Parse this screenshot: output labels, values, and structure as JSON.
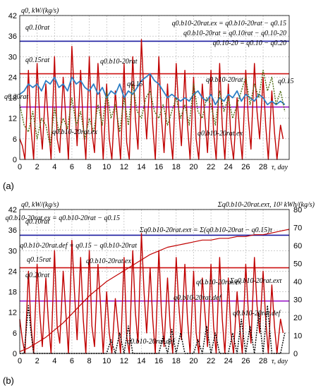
{
  "chart_data": [
    {
      "panel_label": "(a)",
      "type": "line",
      "ylabel": "q0, kW/(kg/s)",
      "xlabel": "τ, day",
      "xlim": [
        0,
        31
      ],
      "ylim": [
        0,
        42
      ],
      "x_ticks": [
        0,
        2,
        4,
        6,
        8,
        10,
        12,
        14,
        16,
        18,
        20,
        22,
        24,
        26,
        28
      ],
      "y_ticks": [
        0,
        6,
        12,
        18,
        24,
        30,
        36,
        42
      ],
      "grid": true,
      "reference_lines": [
        {
          "name": "q0.10rat",
          "value": 34.5,
          "color": "#1a1aa0"
        },
        {
          "name": "q0.15rat",
          "value": 25.0,
          "color": "#cc1111"
        },
        {
          "name": "q0.20rat",
          "value": 15.3,
          "color": "#9a1ac8"
        }
      ],
      "formulas": [
        "q0.b10-20rat.ex = q0.b10-20rat − q0.15",
        "q0.b10-20rat = q0.10rat − q0.10-20",
        "q0.10-20 = q0.10 − q0.20"
      ],
      "annotations": [
        "q0.10rat",
        "q0.15rat",
        "q0.20rat",
        "q0.b10-20rat",
        "q0.15",
        "q0.b10-20rat",
        "q0.15",
        "q0.b10-20rat.ex",
        "q0.b10-20rat.ex"
      ],
      "series": [
        {
          "name": "q0.b10-20rat.ex",
          "color": "#c00000",
          "x": [
            0,
            0.3,
            0.6,
            1.0,
            1.3,
            1.6,
            2.0,
            2.3,
            2.6,
            3.0,
            3.3,
            3.6,
            4.0,
            4.3,
            4.6,
            5.0,
            5.3,
            5.6,
            6.0,
            6.3,
            6.6,
            7.0,
            7.3,
            7.6,
            8.0,
            8.3,
            8.6,
            9.0,
            9.3,
            9.6,
            10.0,
            10.3,
            10.6,
            11.0,
            11.3,
            11.6,
            12.0,
            12.3,
            12.6,
            13.0,
            13.3,
            13.6,
            14.0,
            14.3,
            14.6,
            15.0,
            15.3,
            15.6,
            16.0,
            16.3,
            16.6,
            17.0,
            17.3,
            17.6,
            18.0,
            18.3,
            18.6,
            19.0,
            19.3,
            19.6,
            20.0,
            20.3,
            20.6,
            21.0,
            21.3,
            21.6,
            22.0,
            22.3,
            22.6,
            23.0,
            23.3,
            23.6,
            24.0,
            24.3,
            24.6,
            25.0,
            25.3,
            25.6,
            26.0,
            26.3,
            26.6,
            27.0,
            27.3,
            27.6,
            28.0,
            28.3,
            28.6,
            29.0,
            29.3,
            29.6,
            30.0,
            30.3
          ],
          "values": [
            6,
            4,
            0,
            26,
            9,
            0,
            28,
            12,
            3,
            22,
            10,
            0,
            30,
            6,
            2,
            24,
            12,
            0,
            33,
            18,
            4,
            26,
            10,
            0,
            30,
            8,
            2,
            28,
            15,
            0,
            22,
            6,
            0,
            20,
            10,
            0,
            28,
            5,
            0,
            30,
            12,
            3,
            35,
            18,
            6,
            25,
            10,
            0,
            30,
            12,
            2,
            22,
            8,
            0,
            28,
            14,
            4,
            26,
            10,
            0,
            24,
            6,
            0,
            22,
            12,
            2,
            26,
            8,
            0,
            28,
            10,
            0,
            22,
            6,
            0,
            18,
            8,
            0,
            26,
            12,
            3,
            28,
            14,
            6,
            24,
            10,
            0,
            20,
            8,
            0,
            10,
            6
          ]
        },
        {
          "name": "q0.15",
          "color": "#2e7fc6",
          "x": [
            0,
            0.5,
            1.0,
            1.5,
            2.0,
            2.5,
            3.0,
            3.5,
            4.0,
            4.5,
            5.0,
            5.5,
            6.0,
            6.5,
            7.0,
            7.5,
            8.0,
            8.5,
            9.0,
            9.5,
            10.0,
            10.5,
            11.0,
            11.5,
            12.0,
            12.5,
            13.0,
            13.5,
            14.0,
            14.5,
            15.0,
            15.5,
            16.0,
            16.5,
            17.0,
            17.5,
            18.0,
            18.5,
            19.0,
            19.5,
            20.0,
            20.5,
            21.0,
            21.5,
            22.0,
            22.5,
            23.0,
            23.5,
            24.0,
            24.5,
            25.0,
            25.5,
            26.0,
            26.5,
            27.0,
            27.5,
            28.0,
            28.5,
            29.0,
            29.5,
            30.0,
            30.5
          ],
          "values": [
            19,
            20,
            22,
            21,
            22,
            20,
            23,
            22,
            24,
            21,
            22,
            20,
            24,
            22,
            23,
            21,
            20,
            22,
            19,
            21,
            18,
            20,
            19,
            22,
            18,
            20,
            19,
            21,
            23,
            24,
            25,
            23,
            22,
            20,
            18,
            19,
            18,
            17,
            18,
            17,
            19,
            20,
            18,
            17,
            19,
            16,
            18,
            17,
            19,
            18,
            20,
            17,
            19,
            18,
            17,
            19,
            18,
            16,
            17,
            16,
            17,
            16
          ]
        },
        {
          "name": "q0.b10-20rat",
          "color": "#4d6b12",
          "x": [
            0,
            0.5,
            1.0,
            1.5,
            2.0,
            2.5,
            3.0,
            3.5,
            4.0,
            4.5,
            5.0,
            5.5,
            6.0,
            6.5,
            7.0,
            7.5,
            8.0,
            8.5,
            9.0,
            9.5,
            10.0,
            10.5,
            11.0,
            11.5,
            12.0,
            12.5,
            13.0,
            13.5,
            14.0,
            14.5,
            15.0,
            15.5,
            16.0,
            16.5,
            17.0,
            17.5,
            18.0,
            18.5,
            19.0,
            19.5,
            20.0,
            20.5,
            21.0,
            21.5,
            22.0,
            22.5,
            23.0,
            23.5,
            24.0,
            24.5,
            25.0,
            25.5,
            26.0,
            26.5,
            27.0,
            27.5,
            28.0,
            28.5,
            29.0,
            29.5,
            30.0,
            30.5
          ],
          "values": [
            16,
            10,
            8,
            14,
            6,
            12,
            10,
            4,
            15,
            8,
            12,
            9,
            18,
            10,
            14,
            6,
            12,
            8,
            16,
            10,
            20,
            12,
            16,
            8,
            18,
            10,
            22,
            14,
            12,
            18,
            20,
            14,
            12,
            16,
            10,
            14,
            18,
            12,
            16,
            10,
            22,
            14,
            12,
            18,
            16,
            10,
            20,
            14,
            18,
            12,
            16,
            20,
            24,
            16,
            22,
            18,
            26,
            20,
            24,
            16,
            20,
            14
          ]
        }
      ]
    },
    {
      "panel_label": "(b)",
      "type": "line",
      "ylabel": "q0, kW/(kg/s)",
      "y2label": "Σq0.b10-20rat.exτ, 10² kWh/(kg/s)",
      "xlabel": "τ, day",
      "xlim": [
        0,
        31
      ],
      "ylim": [
        0,
        42
      ],
      "y2lim": [
        0,
        80
      ],
      "x_ticks": [
        0,
        2,
        4,
        6,
        8,
        10,
        12,
        14,
        16,
        18,
        20,
        22,
        24,
        26,
        28
      ],
      "y_ticks": [
        0,
        6,
        12,
        18,
        24,
        30,
        36,
        42
      ],
      "y2_ticks": [
        0,
        10,
        20,
        30,
        40,
        50,
        60,
        70,
        80
      ],
      "grid": true,
      "reference_lines": [
        {
          "name": "q0.10rat",
          "value": 34.5,
          "color": "#1a1aa0"
        },
        {
          "name": "q0.15rat",
          "value": 25.0,
          "color": "#cc1111"
        },
        {
          "name": "q0.20rat",
          "value": 15.3,
          "color": "#9a1ac8"
        }
      ],
      "formulas": [
        "q0.b10-20rat.ex = q0.b10-20rat − q0.15",
        "Σq0.b10-20rat.exτ = Σ(q0.b10-20rat − q0.15)τ",
        "q0.b10-20rat.def = q0.15 − q0.b10-20rat"
      ],
      "annotations": [
        "q0.10rat",
        "q0.15rat",
        "q0.20rat",
        "q0.b10-20rat.ex",
        "q0.b10-20rat.ex",
        "Σq0.b10-20rat.exτ",
        "q0.b10-20rat.def",
        "q0.b10-20rat.def",
        "q0.b10-20rat.def"
      ],
      "series": [
        {
          "name": "q0.b10-20rat.ex",
          "color": "#c00000",
          "x": [
            0,
            0.3,
            0.6,
            1.0,
            1.3,
            1.6,
            2.0,
            2.3,
            2.6,
            3.0,
            3.3,
            3.6,
            4.0,
            4.3,
            4.6,
            5.0,
            5.3,
            5.6,
            6.0,
            6.3,
            6.6,
            7.0,
            7.3,
            7.6,
            8.0,
            8.3,
            8.6,
            9.0,
            9.3,
            9.6,
            10.0,
            10.3,
            10.6,
            11.0,
            11.3,
            11.6,
            12.0,
            12.3,
            12.6,
            13.0,
            13.3,
            13.6,
            14.0,
            14.3,
            14.6,
            15.0,
            15.3,
            15.6,
            16.0,
            16.3,
            16.6,
            17.0,
            17.3,
            17.6,
            18.0,
            18.3,
            18.6,
            19.0,
            19.3,
            19.6,
            20.0,
            20.3,
            20.6,
            21.0,
            21.3,
            21.6,
            22.0,
            22.3,
            22.6,
            23.0,
            23.3,
            23.6,
            24.0,
            24.3,
            24.6,
            25.0,
            25.3,
            25.6,
            26.0,
            26.3,
            26.6,
            27.0,
            27.3,
            27.6,
            28.0,
            28.3,
            28.6,
            29.0,
            29.3,
            29.6,
            30.0,
            30.3
          ],
          "values": [
            10,
            4,
            0,
            24,
            8,
            0,
            26,
            12,
            2,
            22,
            9,
            0,
            30,
            8,
            3,
            24,
            12,
            0,
            33,
            18,
            4,
            28,
            10,
            0,
            30,
            8,
            2,
            26,
            14,
            0,
            18,
            6,
            0,
            16,
            8,
            0,
            28,
            5,
            0,
            30,
            12,
            3,
            35,
            18,
            6,
            25,
            10,
            0,
            30,
            12,
            2,
            22,
            8,
            0,
            28,
            14,
            4,
            26,
            10,
            0,
            24,
            6,
            0,
            22,
            12,
            2,
            26,
            8,
            0,
            28,
            10,
            0,
            22,
            6,
            0,
            18,
            8,
            0,
            26,
            12,
            3,
            28,
            14,
            6,
            24,
            10,
            0,
            20,
            8,
            0,
            10,
            6
          ]
        },
        {
          "name": "q0.b10-20rat.def",
          "color": "#000000",
          "x": [
            0,
            0.5,
            1.0,
            1.3,
            1.6,
            2.0,
            3.0,
            4.0,
            5.0,
            6.0,
            7.0,
            8.0,
            9.0,
            10.0,
            10.5,
            11.0,
            11.5,
            12.0,
            12.5,
            13.0,
            14.0,
            15.0,
            16.0,
            16.5,
            17.0,
            17.5,
            18.0,
            18.5,
            19.0,
            20.0,
            20.5,
            21.0,
            21.5,
            22.0,
            22.5,
            23.0,
            24.0,
            24.5,
            25.0,
            25.5,
            26.0,
            26.5,
            27.0,
            27.5,
            28.0,
            28.5,
            29.0,
            30.0,
            30.5
          ],
          "values": [
            0,
            0,
            14,
            6,
            0,
            0,
            0,
            0,
            0,
            0,
            0,
            0,
            0,
            0,
            4,
            0,
            6,
            0,
            8,
            0,
            0,
            0,
            0,
            5,
            0,
            7,
            0,
            6,
            0,
            0,
            4,
            0,
            8,
            0,
            6,
            0,
            0,
            6,
            0,
            10,
            0,
            8,
            0,
            12,
            0,
            14,
            0,
            0,
            6
          ]
        },
        {
          "name": "Σq0.b10-20rat.exτ",
          "axis": "y2",
          "color": "#c00000",
          "x": [
            0,
            1,
            2,
            3,
            4,
            5,
            6,
            7,
            8,
            9,
            10,
            11,
            12,
            13,
            14,
            15,
            16,
            17,
            18,
            19,
            20,
            21,
            22,
            23,
            24,
            25,
            26,
            27,
            28,
            29,
            30,
            31
          ],
          "values": [
            1,
            3,
            6,
            9,
            13,
            17,
            22,
            27,
            32,
            36,
            40,
            43,
            46,
            49,
            52,
            55,
            57,
            59,
            60,
            61,
            62,
            63,
            63,
            64,
            64,
            65,
            65,
            66,
            66,
            67,
            68,
            69
          ]
        }
      ]
    }
  ]
}
